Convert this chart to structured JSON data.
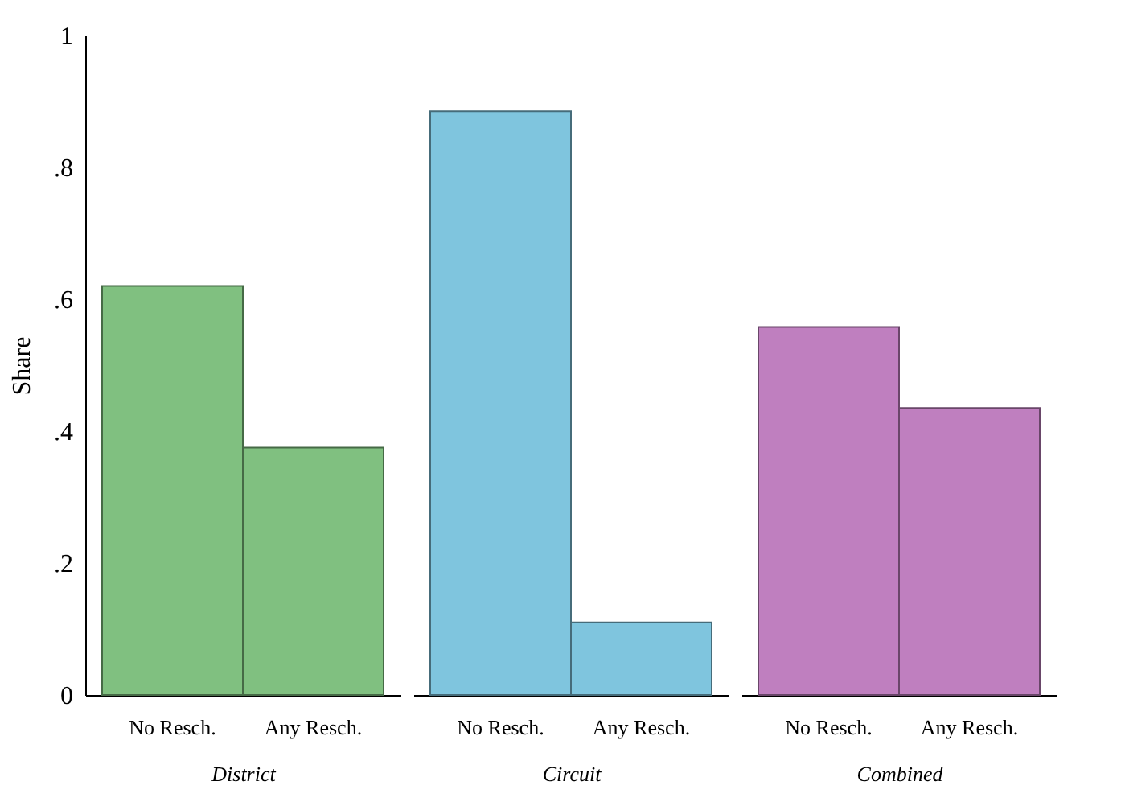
{
  "chart_data": [
    {
      "type": "bar",
      "xlabel": "District",
      "ylabel": "Share",
      "categories": [
        "No Resch.",
        "Any Resch."
      ],
      "values": [
        0.62,
        0.375
      ],
      "color": "#80c080",
      "ylim": [
        0,
        1
      ],
      "yticks": [
        0,
        {
          "value": 0.2,
          "label": ".2"
        },
        {
          "value": 0.4,
          "label": ".4"
        },
        {
          "value": 0.6,
          "label": ".6"
        },
        {
          "value": 0.8,
          "label": ".8"
        },
        1
      ],
      "grid": false
    },
    {
      "type": "bar",
      "xlabel": "Circuit",
      "categories": [
        "No Resch.",
        "Any Resch."
      ],
      "values": [
        0.885,
        0.11
      ],
      "color": "#7fc5de",
      "ylim": [
        0,
        1
      ],
      "tick_labels": "x"
    },
    {
      "type": "bar",
      "xlabel": "Combined",
      "categories": [
        "No Resch.",
        "Any Resch."
      ],
      "values": [
        0.558,
        0.435
      ],
      "color": "#bf7fbf",
      "ylim": [
        0,
        1
      ],
      "tick_labels": "x"
    }
  ]
}
